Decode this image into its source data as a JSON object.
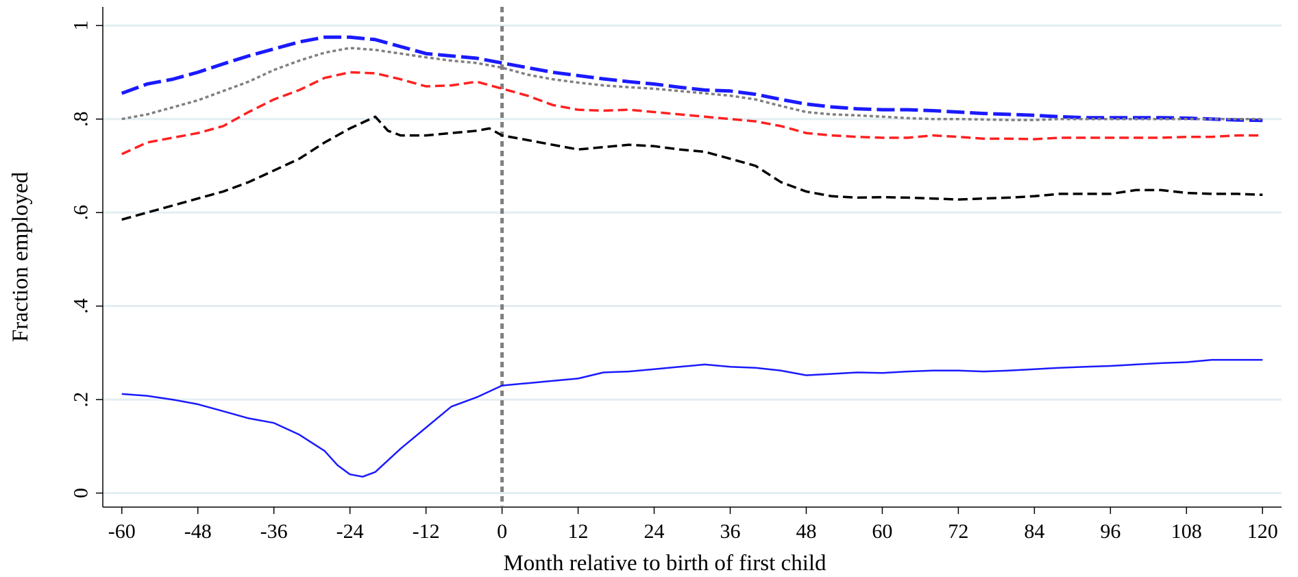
{
  "chart_data": {
    "type": "line",
    "xlabel": "Month relative to birth of first child",
    "ylabel": "Fraction employed",
    "xlim": [
      -63,
      123
    ],
    "ylim": [
      -0.03,
      1.04
    ],
    "x_ticks": [
      -60,
      -48,
      -36,
      -24,
      -12,
      0,
      12,
      24,
      36,
      48,
      60,
      72,
      84,
      96,
      108,
      120
    ],
    "y_ticks": [
      {
        "value": 0,
        "label": "0"
      },
      {
        "value": 0.2,
        "label": ".2"
      },
      {
        "value": 0.4,
        "label": ".4"
      },
      {
        "value": 0.6,
        "label": ".6"
      },
      {
        "value": 0.8,
        "label": ".8"
      },
      {
        "value": 1,
        "label": "1"
      }
    ],
    "grid": "horizontal",
    "reference_line_x": 0,
    "series": [
      {
        "color": "#1a1aff",
        "style": "long-dash",
        "width": 5,
        "x": [
          -60,
          -56,
          -52,
          -48,
          -44,
          -40,
          -36,
          -32,
          -28,
          -24,
          -20,
          -16,
          -12,
          -8,
          -4,
          0,
          4,
          8,
          12,
          16,
          20,
          24,
          28,
          32,
          36,
          40,
          44,
          48,
          52,
          56,
          60,
          64,
          68,
          72,
          76,
          80,
          84,
          88,
          92,
          96,
          100,
          104,
          108,
          112,
          116,
          120
        ],
        "y": [
          0.855,
          0.875,
          0.885,
          0.9,
          0.918,
          0.935,
          0.95,
          0.965,
          0.975,
          0.975,
          0.97,
          0.955,
          0.94,
          0.935,
          0.93,
          0.92,
          0.91,
          0.9,
          0.893,
          0.886,
          0.88,
          0.875,
          0.868,
          0.862,
          0.86,
          0.853,
          0.842,
          0.832,
          0.826,
          0.822,
          0.82,
          0.82,
          0.818,
          0.815,
          0.812,
          0.81,
          0.808,
          0.805,
          0.803,
          0.803,
          0.803,
          0.803,
          0.802,
          0.8,
          0.798,
          0.797
        ]
      },
      {
        "color": "#808080",
        "style": "dot",
        "width": 3.5,
        "x": [
          -60,
          -56,
          -52,
          -48,
          -44,
          -40,
          -36,
          -32,
          -28,
          -24,
          -20,
          -16,
          -12,
          -8,
          -4,
          0,
          4,
          8,
          12,
          16,
          20,
          24,
          28,
          32,
          36,
          40,
          44,
          48,
          52,
          56,
          60,
          64,
          68,
          72,
          76,
          80,
          84,
          88,
          92,
          96,
          100,
          104,
          108,
          112,
          116,
          120
        ],
        "y": [
          0.8,
          0.81,
          0.825,
          0.84,
          0.86,
          0.88,
          0.905,
          0.925,
          0.942,
          0.952,
          0.948,
          0.94,
          0.932,
          0.925,
          0.92,
          0.91,
          0.895,
          0.885,
          0.878,
          0.872,
          0.868,
          0.865,
          0.86,
          0.855,
          0.85,
          0.842,
          0.828,
          0.815,
          0.81,
          0.808,
          0.805,
          0.802,
          0.8,
          0.8,
          0.799,
          0.798,
          0.798,
          0.8,
          0.8,
          0.8,
          0.8,
          0.8,
          0.8,
          0.8,
          0.8,
          0.8
        ]
      },
      {
        "color": "#ff2020",
        "style": "dash",
        "width": 3.5,
        "x": [
          -60,
          -56,
          -52,
          -48,
          -44,
          -40,
          -36,
          -32,
          -28,
          -24,
          -20,
          -16,
          -12,
          -8,
          -4,
          0,
          4,
          8,
          12,
          16,
          20,
          24,
          28,
          32,
          36,
          40,
          44,
          48,
          52,
          56,
          60,
          64,
          68,
          72,
          76,
          80,
          84,
          88,
          92,
          96,
          100,
          104,
          108,
          112,
          116,
          120
        ],
        "y": [
          0.725,
          0.75,
          0.76,
          0.77,
          0.785,
          0.815,
          0.842,
          0.862,
          0.888,
          0.9,
          0.898,
          0.885,
          0.87,
          0.872,
          0.88,
          0.865,
          0.85,
          0.83,
          0.82,
          0.818,
          0.82,
          0.815,
          0.81,
          0.805,
          0.8,
          0.795,
          0.785,
          0.77,
          0.765,
          0.762,
          0.76,
          0.76,
          0.765,
          0.762,
          0.758,
          0.758,
          0.757,
          0.76,
          0.76,
          0.76,
          0.76,
          0.76,
          0.762,
          0.762,
          0.765,
          0.765
        ]
      },
      {
        "color": "#000000",
        "style": "dash",
        "width": 3.5,
        "x": [
          -60,
          -56,
          -52,
          -48,
          -44,
          -40,
          -36,
          -32,
          -28,
          -24,
          -20,
          -18,
          -16,
          -12,
          -8,
          -4,
          -2,
          0,
          4,
          8,
          12,
          16,
          20,
          24,
          28,
          32,
          36,
          40,
          44,
          48,
          52,
          56,
          60,
          64,
          68,
          72,
          76,
          80,
          84,
          88,
          92,
          96,
          100,
          104,
          108,
          112,
          116,
          120
        ],
        "y": [
          0.585,
          0.6,
          0.615,
          0.63,
          0.645,
          0.665,
          0.69,
          0.715,
          0.75,
          0.78,
          0.805,
          0.775,
          0.765,
          0.765,
          0.77,
          0.775,
          0.78,
          0.765,
          0.755,
          0.745,
          0.735,
          0.74,
          0.745,
          0.742,
          0.735,
          0.73,
          0.715,
          0.7,
          0.665,
          0.645,
          0.635,
          0.632,
          0.633,
          0.632,
          0.63,
          0.628,
          0.63,
          0.632,
          0.635,
          0.64,
          0.64,
          0.64,
          0.648,
          0.648,
          0.642,
          0.64,
          0.64,
          0.638
        ]
      },
      {
        "color": "#1a1aff",
        "style": "solid",
        "width": 2.5,
        "x": [
          -60,
          -56,
          -52,
          -48,
          -44,
          -40,
          -36,
          -32,
          -28,
          -26,
          -24,
          -22,
          -20,
          -16,
          -12,
          -8,
          -4,
          0,
          4,
          8,
          12,
          16,
          20,
          24,
          28,
          32,
          36,
          40,
          44,
          48,
          52,
          56,
          60,
          64,
          68,
          72,
          76,
          80,
          84,
          88,
          92,
          96,
          100,
          104,
          108,
          112,
          116,
          120
        ],
        "y": [
          0.212,
          0.208,
          0.2,
          0.19,
          0.175,
          0.16,
          0.15,
          0.125,
          0.09,
          0.06,
          0.04,
          0.035,
          0.045,
          0.095,
          0.14,
          0.185,
          0.205,
          0.23,
          0.235,
          0.24,
          0.245,
          0.258,
          0.26,
          0.265,
          0.27,
          0.275,
          0.27,
          0.268,
          0.262,
          0.252,
          0.255,
          0.258,
          0.257,
          0.26,
          0.262,
          0.262,
          0.26,
          0.262,
          0.265,
          0.268,
          0.27,
          0.272,
          0.275,
          0.278,
          0.28,
          0.285,
          0.285,
          0.285
        ]
      }
    ]
  }
}
